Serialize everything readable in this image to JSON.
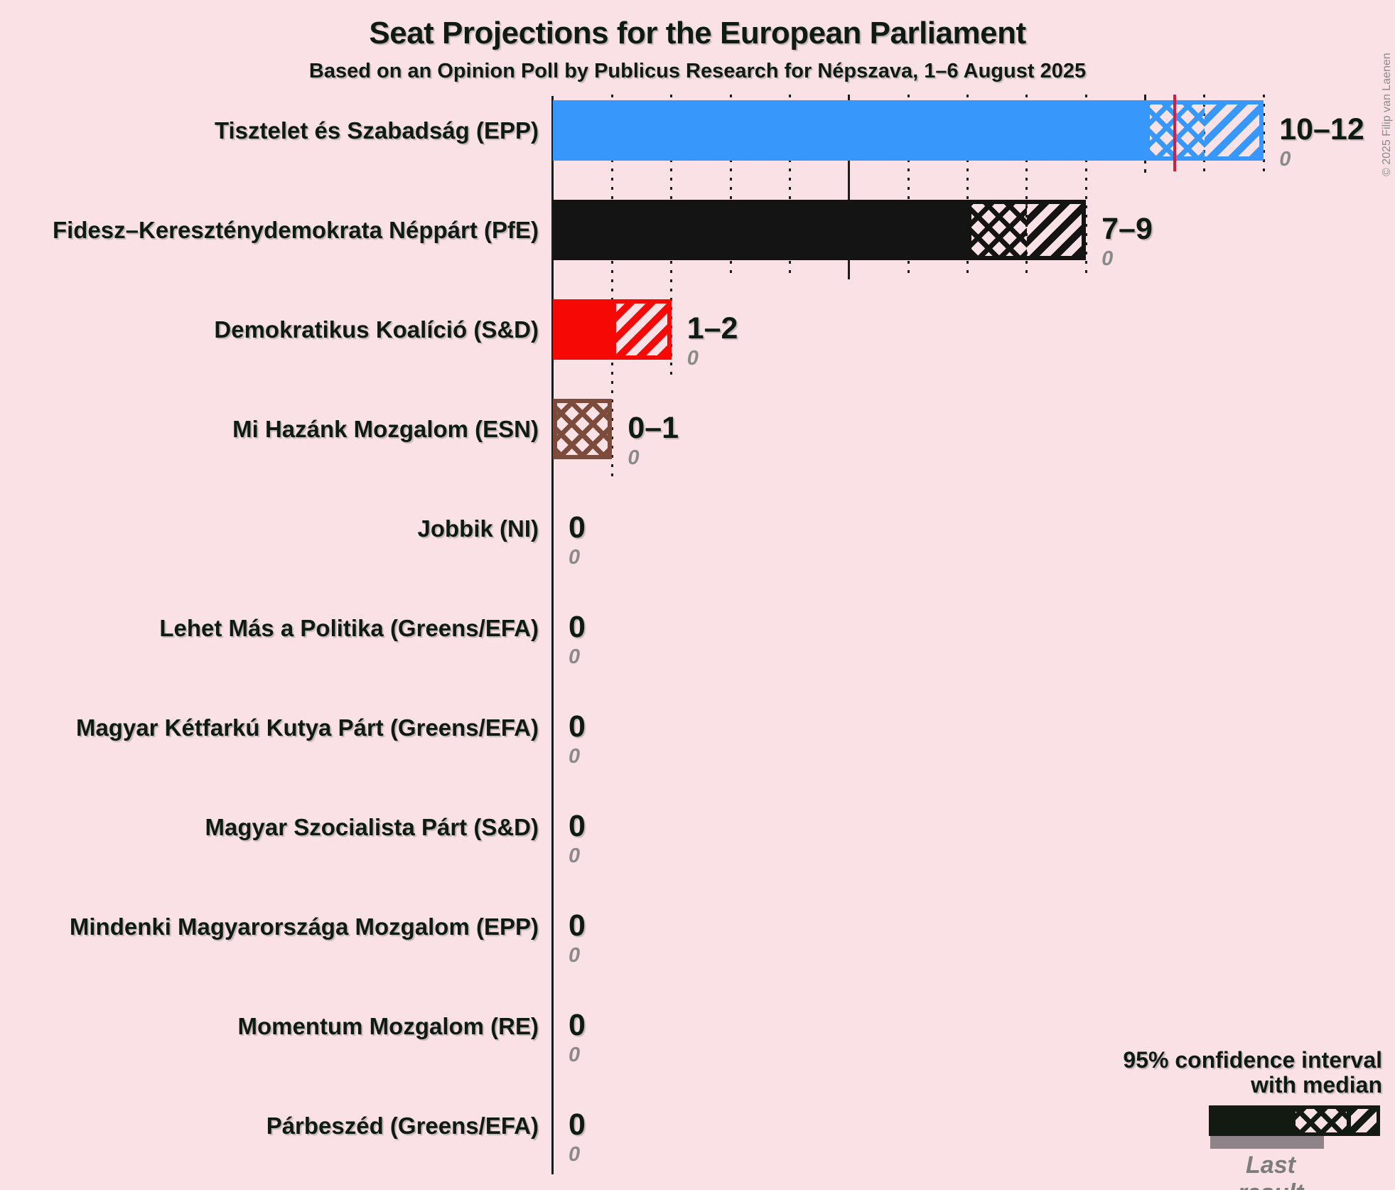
{
  "title": "Seat Projections for the European Parliament",
  "subtitle": "Based on an Opinion Poll by Publicus Research for Népszava, 1–6 August 2025",
  "copyright": "© 2025 Filip van Laenen",
  "legend": {
    "line1": "95% confidence interval",
    "line2": "with median",
    "last_result": "Last result"
  },
  "chart_data": {
    "type": "bar",
    "title": "Seat Projections for the European Parliament",
    "subtitle": "Based on an Opinion Poll by Publicus Research for Népszava, 1–6 August 2025",
    "unit": "seats",
    "x_axis": {
      "min": 0,
      "max": 12,
      "gridline_interval": 1,
      "solid_gridline_at": 5,
      "dashed_gridline_at": 10,
      "grid": "dotted-vertical"
    },
    "majority_line_seats": 10.5,
    "legend_position": "bottom-right",
    "background_color": "#fae1e5",
    "majority_line_color": "#dc1a3a",
    "parties": [
      {
        "label": "Tisztelet és Szabadság (EPP)",
        "color": "#3797fb",
        "ci_low": 10,
        "median": 11,
        "ci_high": 12,
        "seats_label": "10–12",
        "last_result": 0,
        "last_result_label": "0"
      },
      {
        "label": "Fidesz–Kereszténydemokrata Néppárt (PfE)",
        "color": "#131413",
        "ci_low": 7,
        "median": 8,
        "ci_high": 9,
        "seats_label": "7–9",
        "last_result": 0,
        "last_result_label": "0"
      },
      {
        "label": "Demokratikus Koalíció (S&D)",
        "color": "#f60805",
        "ci_low": 1,
        "median": 1,
        "ci_high": 2,
        "seats_label": "1–2",
        "last_result": 0,
        "last_result_label": "0"
      },
      {
        "label": "Mi Hazánk Mozgalom (ESN)",
        "color": "#7d4b3c",
        "ci_low": 0,
        "median": 1,
        "ci_high": 1,
        "seats_label": "0–1",
        "last_result": 0,
        "last_result_label": "0"
      },
      {
        "label": "Jobbik (NI)",
        "color": "#131413",
        "ci_low": 0,
        "median": 0,
        "ci_high": 0,
        "seats_label": "0",
        "last_result": 0,
        "last_result_label": "0"
      },
      {
        "label": "Lehet Más a Politika (Greens/EFA)",
        "color": "#131413",
        "ci_low": 0,
        "median": 0,
        "ci_high": 0,
        "seats_label": "0",
        "last_result": 0,
        "last_result_label": "0"
      },
      {
        "label": "Magyar Kétfarkú Kutya Párt (Greens/EFA)",
        "color": "#131413",
        "ci_low": 0,
        "median": 0,
        "ci_high": 0,
        "seats_label": "0",
        "last_result": 0,
        "last_result_label": "0"
      },
      {
        "label": "Magyar Szocialista Párt (S&D)",
        "color": "#131413",
        "ci_low": 0,
        "median": 0,
        "ci_high": 0,
        "seats_label": "0",
        "last_result": 0,
        "last_result_label": "0"
      },
      {
        "label": "Mindenki Magyarországa Mozgalom (EPP)",
        "color": "#131413",
        "ci_low": 0,
        "median": 0,
        "ci_high": 0,
        "seats_label": "0",
        "last_result": 0,
        "last_result_label": "0"
      },
      {
        "label": "Momentum Mozgalom (RE)",
        "color": "#131413",
        "ci_low": 0,
        "median": 0,
        "ci_high": 0,
        "seats_label": "0",
        "last_result": 0,
        "last_result_label": "0"
      },
      {
        "label": "Párbeszéd (Greens/EFA)",
        "color": "#131413",
        "ci_low": 0,
        "median": 0,
        "ci_high": 0,
        "seats_label": "0",
        "last_result": 0,
        "last_result_label": "0"
      }
    ]
  }
}
